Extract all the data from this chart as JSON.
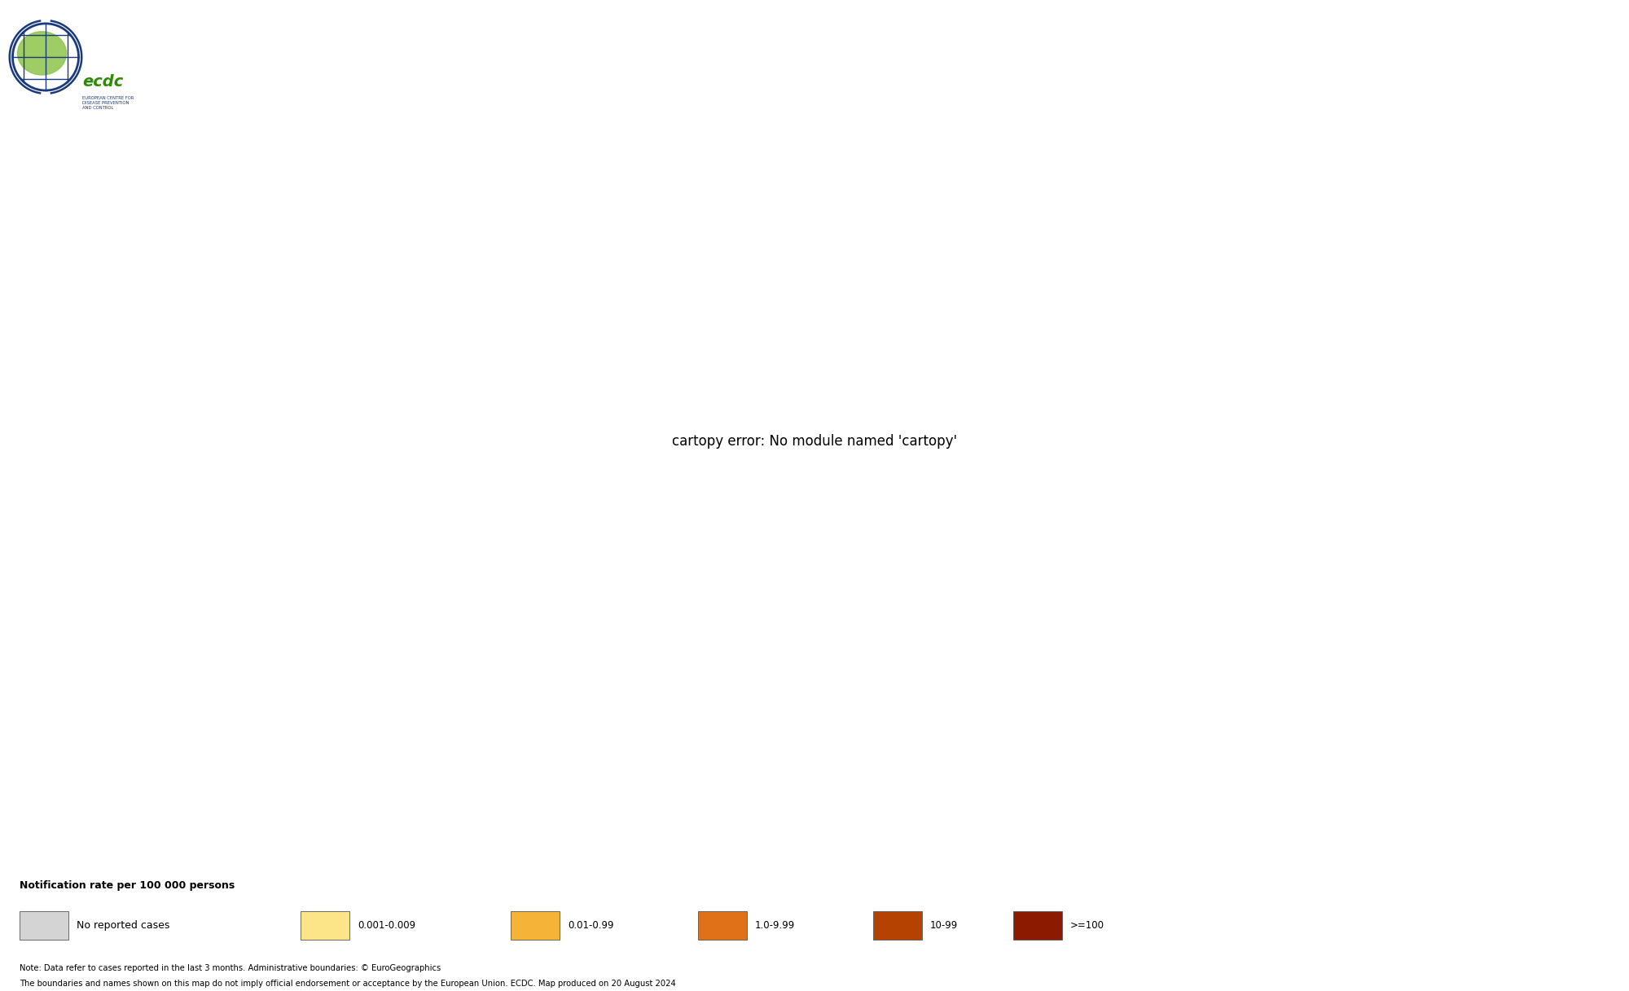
{
  "title": "",
  "background_color": "#ffffff",
  "ocean_color": "#ffffff",
  "default_country_color": "#d4d4d4",
  "border_color": "#707070",
  "border_linewidth": 0.4,
  "legend_title": "Notification rate per 100 000 persons",
  "legend_categories": [
    {
      "label": "No reported cases",
      "color": "#d4d4d4"
    },
    {
      "label": "0.001-0.009",
      "color": "#fce589"
    },
    {
      "label": "0.01-0.99",
      "color": "#f5b437"
    },
    {
      "label": "1.0-9.99",
      "color": "#e07118"
    },
    {
      "label": "10-99",
      "color": "#b54200"
    },
    {
      "label": ">=100",
      "color": "#8b1a00"
    }
  ],
  "country_colors": {
    "Afghanistan": "#8b1a00",
    "Pakistan": "#fce589",
    "India": "#f5b437",
    "Bangladesh": "#f5b437",
    "Myanmar": "#fce589",
    "Thailand": "#fce589",
    "Yemen": "#e07118",
    "Somalia": "#e07118",
    "Ethiopia": "#e07118",
    "Kenya": "#e07118",
    "Nigeria": "#e07118",
    "Democratic Republic of the Congo": "#e07118",
    "Sudan": "#f5b437",
    "S. Sudan": "#f5b437",
    "South Sudan": "#f5b437",
    "Uganda": "#f5b437",
    "United Rep. of Tanzania": "#f5b437",
    "Tanzania": "#f5b437",
    "Mozambique": "#f5b437",
    "Zimbabwe": "#f5b437",
    "Zambia": "#f5b437",
    "Cameroon": "#f5b437",
    "Chad": "#fce589",
    "Niger": "#fce589",
    "Haiti": "#fce589",
    "Iraq": "#fce589",
    "Syria": "#fce589",
    "Philippines": "#fce589",
    "Malawi": "#f5b437",
    "Angola": "#f5b437"
  },
  "note_line1": "Note: Data refer to cases reported in the last 3 months. Administrative boundaries: © EuroGeographics",
  "note_line2": "The boundaries and names shown on this map do not imply official endorsement or acceptance by the European Union. ECDC. Map produced on 20 August 2024",
  "map_xlim": [
    -180,
    180
  ],
  "map_ylim": [
    -58,
    83
  ],
  "figsize": [
    20.0,
    12.17
  ],
  "dpi": 100
}
